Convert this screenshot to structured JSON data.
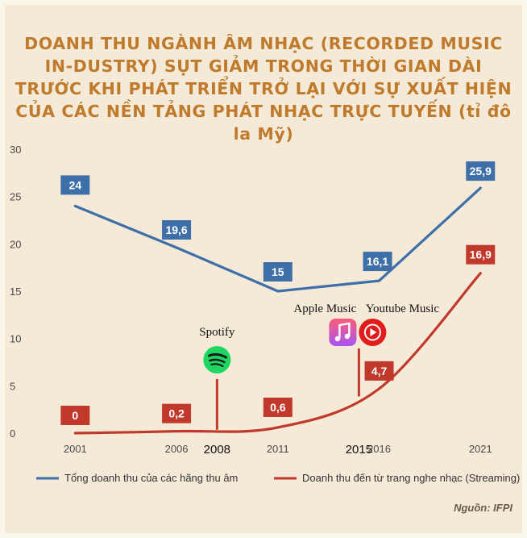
{
  "title": "DOANH THU NGÀNH ÂM NHẠC (RECORDED MUSIC IN-DUSTRY) SỤT GIẢM TRONG THỜI GIAN DÀI TRƯỚC KHI PHÁT TRIỂN TRỞ LẠI VỚI SỰ XUẤT HIỆN CỦA CÁC NỀN TẢNG PHÁT NHẠC TRỰC TUYẾN (tỉ đô la Mỹ)",
  "source": "Nguồn: IFPI",
  "colors": {
    "total": "#3e6fa8",
    "streaming": "#c0392b",
    "title": "#bf7a2c",
    "background": "#f4ead7"
  },
  "chart_data": {
    "type": "line",
    "x": [
      2001,
      2006,
      2011,
      2016,
      2021
    ],
    "series": [
      {
        "name": "Tổng doanh thu của các hãng thu âm",
        "values": [
          24,
          19.6,
          15,
          16.1,
          25.9
        ],
        "labels": [
          "24",
          "19,6",
          "15",
          "16,1",
          "25,9"
        ],
        "color": "#3e6fa8"
      },
      {
        "name": "Doanh thu đến từ trang nghe nhạc (Streaming)",
        "values": [
          0,
          0.2,
          0.6,
          4.7,
          16.9
        ],
        "labels": [
          "0",
          "0,2",
          "0,6",
          "4,7",
          "16,9"
        ],
        "color": "#c0392b"
      }
    ],
    "xlim": [
      1998.8,
      2022.5
    ],
    "ylim": [
      0,
      30
    ],
    "yticks": [
      0,
      5,
      10,
      15,
      20,
      25,
      30
    ],
    "xticks": [
      "2001",
      "2006",
      "2011",
      "2016",
      "2021"
    ],
    "extra_ticks": [
      "2008",
      "2015"
    ],
    "annotations": [
      {
        "label": "Spotify",
        "year": 2008,
        "icon": "spotify-icon"
      },
      {
        "label": "Apple Music",
        "year": 2015,
        "icon": "apple-music-icon"
      },
      {
        "label": "Youtube Music",
        "year": 2015,
        "icon": "youtube-music-icon"
      }
    ],
    "legend_position": "bottom",
    "grid": false
  }
}
